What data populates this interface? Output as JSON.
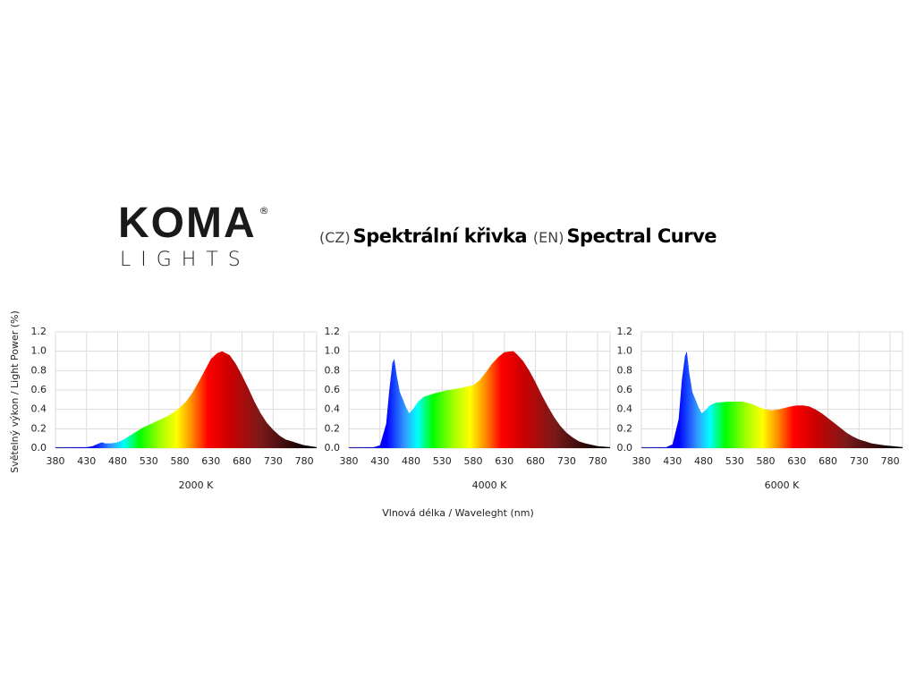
{
  "logo": {
    "text": "KOMA",
    "sub": "LIGHTS",
    "registered": "®"
  },
  "header": {
    "cz_tag": "(CZ)",
    "cz_title": "Spektrální křivka",
    "en_tag": "(EN)",
    "en_title": "Spectral Curve"
  },
  "axes": {
    "ylabel": "Světelný výkon / Light Power (%)",
    "xlabel": "Vlnová délka / Waveleght (nm)"
  },
  "colors": {
    "grid": "#dcdcdc",
    "spectrum": [
      "#2a2a9a",
      "#0000ff",
      "#3399ff",
      "#00ffff",
      "#00ff00",
      "#aaff00",
      "#ffff00",
      "#ff8800",
      "#ff0000",
      "#cc0000",
      "#7a1a1a",
      "#000000"
    ]
  },
  "chart_data": [
    {
      "type": "area",
      "title": "2000 K",
      "xlim": [
        380,
        800
      ],
      "ylim": [
        0,
        1.2
      ],
      "grid": true,
      "xticks": [
        380,
        430,
        480,
        530,
        580,
        630,
        680,
        730,
        780
      ],
      "yticks": [
        "0.0",
        "0.2",
        "0.4",
        "0.6",
        "0.8",
        "1.0",
        "1.2"
      ],
      "x": [
        380,
        400,
        420,
        430,
        440,
        450,
        455,
        460,
        470,
        480,
        490,
        500,
        510,
        520,
        530,
        540,
        550,
        560,
        570,
        580,
        590,
        600,
        610,
        620,
        630,
        640,
        648,
        660,
        670,
        680,
        690,
        700,
        710,
        720,
        730,
        740,
        750,
        760,
        770,
        780,
        790,
        800
      ],
      "y": [
        0.01,
        0.01,
        0.01,
        0.01,
        0.02,
        0.05,
        0.06,
        0.05,
        0.05,
        0.06,
        0.09,
        0.13,
        0.17,
        0.21,
        0.24,
        0.27,
        0.3,
        0.33,
        0.37,
        0.42,
        0.48,
        0.57,
        0.68,
        0.8,
        0.92,
        0.98,
        1.0,
        0.96,
        0.87,
        0.75,
        0.62,
        0.48,
        0.36,
        0.26,
        0.19,
        0.13,
        0.09,
        0.07,
        0.05,
        0.03,
        0.02,
        0.01
      ]
    },
    {
      "type": "area",
      "title": "4000 K",
      "xlim": [
        380,
        800
      ],
      "ylim": [
        0,
        1.2
      ],
      "grid": true,
      "xticks": [
        380,
        430,
        480,
        530,
        580,
        630,
        680,
        730,
        780
      ],
      "yticks": [
        "0.0",
        "0.2",
        "0.4",
        "0.6",
        "0.8",
        "1.0",
        "1.2"
      ],
      "x": [
        380,
        400,
        420,
        430,
        440,
        445,
        450,
        453,
        457,
        462,
        467,
        472,
        477,
        483,
        490,
        500,
        520,
        540,
        560,
        580,
        590,
        600,
        610,
        620,
        630,
        640,
        645,
        650,
        660,
        670,
        680,
        690,
        700,
        710,
        720,
        730,
        740,
        750,
        760,
        780,
        800
      ],
      "y": [
        0.01,
        0.01,
        0.01,
        0.03,
        0.25,
        0.6,
        0.88,
        0.92,
        0.75,
        0.58,
        0.5,
        0.42,
        0.36,
        0.4,
        0.47,
        0.53,
        0.57,
        0.6,
        0.62,
        0.65,
        0.7,
        0.78,
        0.87,
        0.94,
        0.99,
        1.0,
        1.0,
        0.97,
        0.9,
        0.8,
        0.68,
        0.55,
        0.43,
        0.32,
        0.23,
        0.16,
        0.11,
        0.07,
        0.05,
        0.02,
        0.01
      ]
    },
    {
      "type": "area",
      "title": "6000 K",
      "xlim": [
        380,
        800
      ],
      "ylim": [
        0,
        1.2
      ],
      "grid": true,
      "xticks": [
        380,
        430,
        480,
        530,
        580,
        630,
        680,
        730,
        780
      ],
      "yticks": [
        "0.0",
        "0.2",
        "0.4",
        "0.6",
        "0.8",
        "1.0",
        "1.2"
      ],
      "x": [
        380,
        400,
        420,
        430,
        440,
        445,
        450,
        453,
        457,
        462,
        467,
        472,
        477,
        483,
        490,
        500,
        520,
        540,
        550,
        560,
        570,
        580,
        590,
        600,
        620,
        630,
        640,
        650,
        660,
        670,
        680,
        690,
        700,
        710,
        720,
        730,
        740,
        750,
        770,
        800
      ],
      "y": [
        0.01,
        0.01,
        0.01,
        0.04,
        0.3,
        0.7,
        0.95,
        1.0,
        0.78,
        0.58,
        0.5,
        0.42,
        0.36,
        0.39,
        0.44,
        0.47,
        0.48,
        0.48,
        0.47,
        0.45,
        0.42,
        0.4,
        0.39,
        0.4,
        0.43,
        0.44,
        0.44,
        0.43,
        0.4,
        0.36,
        0.31,
        0.26,
        0.21,
        0.16,
        0.12,
        0.09,
        0.07,
        0.05,
        0.03,
        0.01
      ]
    }
  ]
}
